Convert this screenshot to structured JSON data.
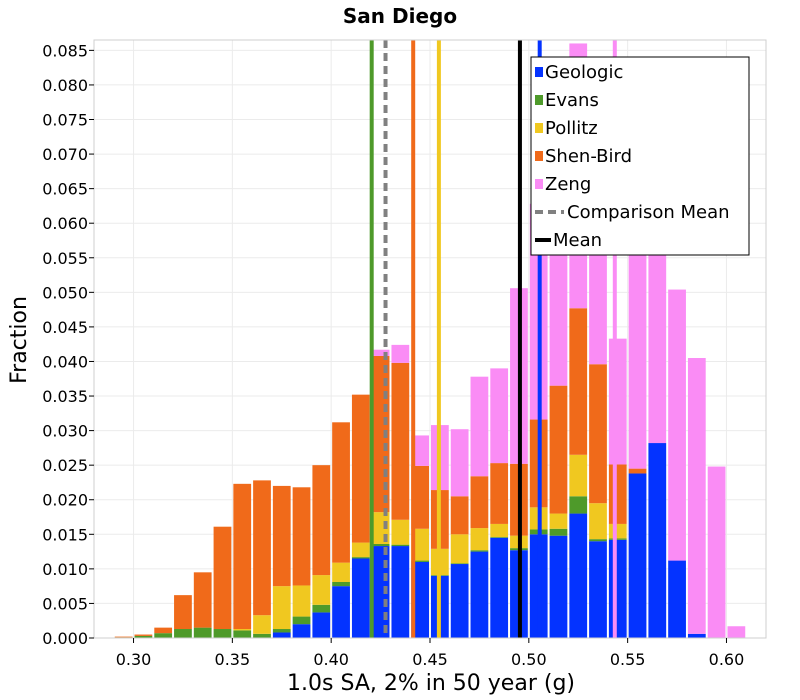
{
  "chart_data": {
    "type": "bar",
    "stacked": true,
    "title": "San Diego",
    "xlabel": "1.0s SA, 2% in 50 year (g)",
    "ylabel": "Fraction",
    "xlim": [
      0.28,
      0.62
    ],
    "ylim": [
      0.0,
      0.0865
    ],
    "xticks": [
      0.3,
      0.35,
      0.4,
      0.45,
      0.5,
      0.55,
      0.6
    ],
    "xtick_labels": [
      "0.30",
      "0.35",
      "0.40",
      "0.45",
      "0.50",
      "0.55",
      "0.60"
    ],
    "yticks": [
      0.0,
      0.005,
      0.01,
      0.015,
      0.02,
      0.025,
      0.03,
      0.035,
      0.04,
      0.045,
      0.05,
      0.055,
      0.06,
      0.065,
      0.07,
      0.075,
      0.08,
      0.085
    ],
    "ytick_labels": [
      "0.000",
      "0.005",
      "0.010",
      "0.015",
      "0.020",
      "0.025",
      "0.030",
      "0.035",
      "0.040",
      "0.045",
      "0.050",
      "0.055",
      "0.060",
      "0.065",
      "0.070",
      "0.075",
      "0.080",
      "0.085"
    ],
    "grid": true,
    "legend_position": "top-right",
    "bin_width": 0.01,
    "bin_centers": [
      0.295,
      0.305,
      0.315,
      0.325,
      0.335,
      0.345,
      0.355,
      0.365,
      0.375,
      0.385,
      0.395,
      0.405,
      0.415,
      0.425,
      0.435,
      0.445,
      0.455,
      0.465,
      0.475,
      0.485,
      0.495,
      0.505,
      0.515,
      0.525,
      0.535,
      0.545,
      0.555,
      0.565,
      0.575,
      0.585,
      0.595,
      0.605,
      0.615
    ],
    "series": [
      {
        "name": "Geologic",
        "color": "#0433ff",
        "values": [
          0,
          0,
          0,
          0,
          0,
          0,
          0,
          0,
          0.0008,
          0.002,
          0.0037,
          0.0075,
          0.0115,
          0.0133,
          0.0133,
          0.011,
          0.009,
          0.0107,
          0.0125,
          0.0145,
          0.0127,
          0.015,
          0.0148,
          0.018,
          0.014,
          0.0142,
          0.0238,
          0.0282,
          0.0112,
          0.0006,
          0,
          0,
          0
        ]
      },
      {
        "name": "Evans",
        "color": "#4e9a2a",
        "values": [
          0.0001,
          0.0003,
          0.0007,
          0.0013,
          0.0015,
          0.0013,
          0.0011,
          0.0006,
          0.0005,
          0.0011,
          0.0011,
          0.0006,
          0.0002,
          0.0003,
          0.0002,
          0.0002,
          0.0001,
          0.0001,
          0.0002,
          0.0001,
          0.0003,
          0.0007,
          0.001,
          0.0025,
          0.0003,
          0.0002,
          0,
          0,
          0,
          0,
          0,
          0,
          0
        ]
      },
      {
        "name": "Pollitz",
        "color": "#f0c820",
        "values": [
          0,
          0,
          0,
          0,
          0,
          0,
          0.0002,
          0.0027,
          0.0062,
          0.0045,
          0.0043,
          0.0028,
          0.0021,
          0.0046,
          0.0036,
          0.0046,
          0.0038,
          0.0042,
          0.0032,
          0.0019,
          0.0018,
          0.0032,
          0.0022,
          0.006,
          0.0052,
          0.0021,
          0,
          0,
          0,
          0,
          0,
          0,
          0
        ]
      },
      {
        "name": "Shen-Bird",
        "color": "#f06a1a",
        "values": [
          0.0001,
          0.0002,
          0.0008,
          0.0049,
          0.008,
          0.0148,
          0.021,
          0.0195,
          0.0145,
          0.0142,
          0.0159,
          0.0203,
          0.0214,
          0.0226,
          0.0227,
          0.0091,
          0.0085,
          0.0055,
          0.0075,
          0.0088,
          0.0104,
          0.0127,
          0.0185,
          0.0212,
          0.0201,
          0.0086,
          0.0007,
          0,
          0,
          0,
          0,
          0,
          0
        ]
      },
      {
        "name": "Zeng",
        "color": "#fa8cf5",
        "values": [
          0,
          0,
          0,
          0,
          0,
          0,
          0,
          0,
          0,
          0,
          0,
          0,
          0,
          0.0009,
          0.0026,
          0.0044,
          0.0094,
          0.0097,
          0.0144,
          0.0137,
          0.0254,
          0.0312,
          0.0376,
          0.0383,
          0.0419,
          0.0182,
          0.0338,
          0.0287,
          0.0392,
          0.0399,
          0.0248,
          0.0017,
          0
        ]
      }
    ],
    "vertical_lines": [
      {
        "name": "Evans",
        "x": 0.4205,
        "color": "#4e9a2a",
        "style": "solid"
      },
      {
        "name": "Shen-Bird",
        "x": 0.4415,
        "color": "#f06a1a",
        "style": "solid"
      },
      {
        "name": "Pollitz",
        "x": 0.4545,
        "color": "#f0c820",
        "style": "solid"
      },
      {
        "name": "Geologic",
        "x": 0.5055,
        "color": "#0433ff",
        "style": "solid"
      },
      {
        "name": "Zeng",
        "x": 0.5435,
        "color": "#fa8cf5",
        "style": "solid"
      },
      {
        "name": "Comparison Mean",
        "x": 0.4275,
        "color": "#808080",
        "style": "dashed"
      },
      {
        "name": "Mean",
        "x": 0.4955,
        "color": "#000000",
        "style": "solid"
      }
    ],
    "legend": [
      {
        "label": "Geologic",
        "color": "#0433ff",
        "kind": "box"
      },
      {
        "label": "Evans",
        "color": "#4e9a2a",
        "kind": "box"
      },
      {
        "label": "Pollitz",
        "color": "#f0c820",
        "kind": "box"
      },
      {
        "label": "Shen-Bird",
        "color": "#f06a1a",
        "kind": "box"
      },
      {
        "label": "Zeng",
        "color": "#fa8cf5",
        "kind": "box"
      },
      {
        "label": "Comparison Mean",
        "color": "#808080",
        "kind": "dashed"
      },
      {
        "label": "Mean",
        "color": "#000000",
        "kind": "line"
      }
    ]
  }
}
